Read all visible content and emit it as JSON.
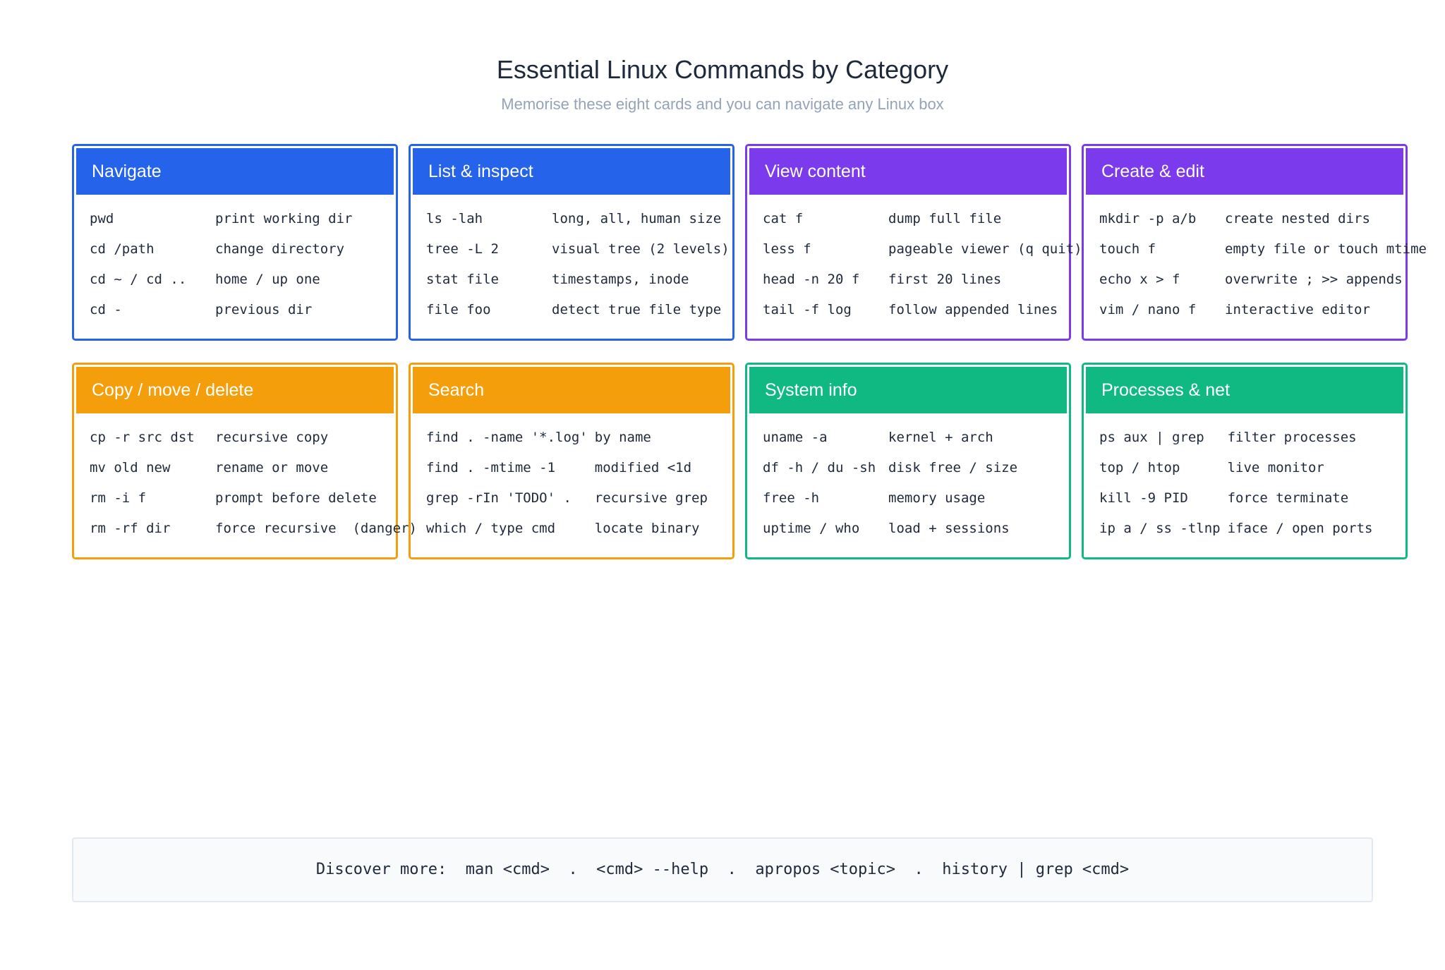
{
  "header": {
    "title": "Essential Linux Commands by Category",
    "subtitle": "Memorise these eight cards and you can navigate any Linux box"
  },
  "cards": [
    {
      "title": "Navigate",
      "color": "#2563eb",
      "rows": [
        [
          "pwd",
          "print working dir"
        ],
        [
          "cd /path",
          "change directory"
        ],
        [
          "cd ~ / cd ..",
          "home / up one"
        ],
        [
          "cd -",
          "previous dir"
        ]
      ]
    },
    {
      "title": "List & inspect",
      "color": "#2563eb",
      "rows": [
        [
          "ls -lah",
          "long, all, human size"
        ],
        [
          "tree -L 2",
          "visual tree (2 levels)"
        ],
        [
          "stat file",
          "timestamps, inode"
        ],
        [
          "file foo",
          "detect true file type"
        ]
      ]
    },
    {
      "title": "View content",
      "color": "#7c3aed",
      "rows": [
        [
          "cat f",
          "dump full file"
        ],
        [
          "less f",
          "pageable viewer (q quit)"
        ],
        [
          "head -n 20 f",
          "first 20 lines"
        ],
        [
          "tail -f log",
          "follow appended lines"
        ]
      ]
    },
    {
      "title": "Create & edit",
      "color": "#7c3aed",
      "rows": [
        [
          "mkdir -p a/b",
          "create nested dirs"
        ],
        [
          "touch f",
          "empty file or touch mtime"
        ],
        [
          "echo x > f",
          "overwrite ; >> appends"
        ],
        [
          "vim / nano f",
          "interactive editor"
        ]
      ]
    },
    {
      "title": "Copy / move / delete",
      "color": "#f59e0b",
      "rows": [
        [
          "cp -r src dst",
          "recursive copy"
        ],
        [
          "mv old new",
          "rename or move"
        ],
        [
          "rm -i f",
          "prompt before delete"
        ],
        [
          "rm -rf dir",
          "force recursive  (danger)"
        ]
      ]
    },
    {
      "title": "Search",
      "color": "#f59e0b",
      "rows": [
        [
          "find . -name '*.log'",
          "by name"
        ],
        [
          "find . -mtime -1",
          "modified <1d"
        ],
        [
          "grep -rIn 'TODO' .",
          "recursive grep"
        ],
        [
          "which / type cmd",
          "locate binary"
        ]
      ]
    },
    {
      "title": "System info",
      "color": "#10b981",
      "rows": [
        [
          "uname -a",
          "kernel + arch"
        ],
        [
          "df -h / du -sh",
          "disk free / size"
        ],
        [
          "free -h",
          "memory usage"
        ],
        [
          "uptime / who",
          "load + sessions"
        ]
      ]
    },
    {
      "title": "Processes & net",
      "color": "#10b981",
      "rows": [
        [
          "ps aux | grep",
          "filter processes"
        ],
        [
          "top / htop",
          "live monitor"
        ],
        [
          "kill -9 PID",
          "force terminate"
        ],
        [
          "ip a / ss -tlnp",
          "iface / open ports"
        ]
      ]
    }
  ],
  "footer": {
    "text": "Discover more:  man <cmd>  .  <cmd> --help  .  apropos <topic>  .  history | grep <cmd>"
  }
}
